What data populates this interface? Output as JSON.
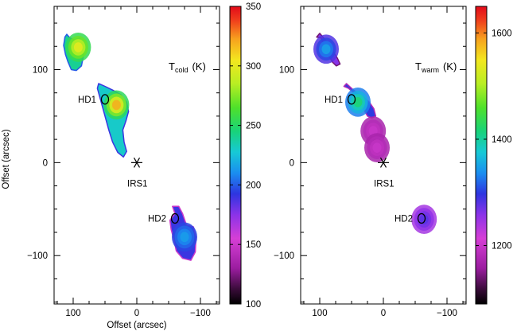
{
  "chart_data": [
    {
      "type": "heatmap",
      "panel_label": "T",
      "panel_subscript": "cold",
      "panel_unit": "(K)",
      "xlabel": "Offset (arcsec)",
      "ylabel": "Offset (arcsec)",
      "xlim": [
        130,
        -130
      ],
      "ylim": [
        -152,
        168
      ],
      "xticks": [
        100,
        0,
        -100
      ],
      "xtick_labels": [
        "100",
        "0",
        "−100"
      ],
      "yticks": [
        100,
        0,
        -100
      ],
      "ytick_labels": [
        "100",
        "0",
        "−100"
      ],
      "colorbar": {
        "range": [
          100,
          350
        ],
        "ticks": [
          100,
          150,
          200,
          250,
          300,
          350
        ],
        "tick_labels": [
          "100",
          "150",
          "200",
          "250",
          "300",
          "350"
        ]
      },
      "markers": [
        {
          "label": "IRS1",
          "x": 0,
          "y": 0,
          "symbol": "star"
        },
        {
          "label": "HD1",
          "x": 50,
          "y": 68,
          "symbol": "ellipse"
        },
        {
          "label": "HD2",
          "x": -60,
          "y": -60,
          "symbol": "ellipse"
        }
      ],
      "regions": [
        {
          "points": [
            [
              98,
              132
            ],
            [
              90,
              134
            ],
            [
              85,
              126
            ],
            [
              84,
              114
            ],
            [
              87,
              104
            ],
            [
              95,
              99
            ],
            [
              103,
              100
            ],
            [
              108,
              108
            ],
            [
              112,
              116
            ],
            [
              115,
              126
            ],
            [
              113,
              135
            ],
            [
              110,
              138
            ],
            [
              105,
              134
            ]
          ],
          "base_value": 240,
          "peak": [
            92,
            124
          ],
          "peak_value": 300
        },
        {
          "points": [
            [
              60,
              85
            ],
            [
              50,
              82
            ],
            [
              38,
              78
            ],
            [
              25,
              73
            ],
            [
              16,
              65
            ],
            [
              13,
              55
            ],
            [
              17,
              45
            ],
            [
              22,
              35
            ],
            [
              20,
              22
            ],
            [
              16,
              12
            ],
            [
              21,
              6
            ],
            [
              30,
              11
            ],
            [
              38,
              22
            ],
            [
              44,
              35
            ],
            [
              52,
              55
            ],
            [
              58,
              70
            ],
            [
              62,
              80
            ]
          ],
          "base_value": 230,
          "peak": [
            32,
            62
          ],
          "peak_value": 320
        },
        {
          "points": [
            [
              -60,
              -55
            ],
            [
              -56,
              -47
            ],
            [
              -66,
              -47
            ],
            [
              -72,
              -55
            ],
            [
              -78,
              -67
            ],
            [
              -89,
              -69
            ],
            [
              -93,
              -80
            ],
            [
              -92,
              -96
            ],
            [
              -85,
              -105
            ],
            [
              -72,
              -103
            ],
            [
              -62,
              -95
            ],
            [
              -58,
              -82
            ],
            [
              -54,
              -72
            ],
            [
              -52,
              -62
            ]
          ],
          "base_value": 190,
          "peak": [
            -75,
            -80
          ],
          "peak_value": 215
        }
      ]
    },
    {
      "type": "heatmap",
      "panel_label": "T",
      "panel_subscript": "warm",
      "panel_unit": "(K)",
      "xlabel": "",
      "ylabel": "",
      "xlim": [
        130,
        -130
      ],
      "ylim": [
        -152,
        168
      ],
      "xticks": [
        100,
        0,
        -100
      ],
      "xtick_labels": [
        "100",
        "0",
        "−100"
      ],
      "yticks": [
        100,
        0,
        -100
      ],
      "ytick_labels": [
        "100",
        "0",
        "−100"
      ],
      "colorbar": {
        "range": [
          1090,
          1650
        ],
        "ticks": [
          1200,
          1400,
          1600
        ],
        "tick_labels": [
          "1200",
          "1400",
          "1600"
        ]
      },
      "markers": [
        {
          "label": "IRS1",
          "x": 0,
          "y": 0,
          "symbol": "star"
        },
        {
          "label": "HD1",
          "x": 50,
          "y": 68,
          "symbol": "ellipse"
        },
        {
          "label": "HD2",
          "x": -60,
          "y": -60,
          "symbol": "ellipse"
        }
      ],
      "regions": [
        {
          "points": [
            [
              105,
              135
            ],
            [
              98,
              134
            ],
            [
              92,
              124
            ],
            [
              85,
              114
            ],
            [
              80,
              108
            ],
            [
              74,
              104
            ],
            [
              68,
              106
            ],
            [
              72,
              112
            ],
            [
              80,
              121
            ],
            [
              90,
              131
            ],
            [
              100,
              139
            ]
          ],
          "base_value": 1260,
          "peak": [
            90,
            122
          ],
          "peak_value": 1350
        },
        {
          "points": [
            [
              62,
              82
            ],
            [
              55,
              80
            ],
            [
              48,
              76
            ],
            [
              40,
              72
            ],
            [
              35,
              64
            ],
            [
              30,
              56
            ],
            [
              25,
              50
            ],
            [
              18,
              48
            ],
            [
              12,
              50
            ],
            [
              15,
              58
            ],
            [
              22,
              65
            ],
            [
              30,
              70
            ],
            [
              40,
              74
            ],
            [
              50,
              80
            ],
            [
              58,
              85
            ]
          ],
          "base_value": 1300,
          "peak": [
            40,
            65
          ],
          "peak_value": 1420
        },
        {
          "points": [
            [
              20,
              40
            ],
            [
              15,
              36
            ],
            [
              12,
              30
            ],
            [
              17,
              32
            ],
            [
              21,
              36
            ]
          ],
          "base_value": 1160,
          "peak": [
            16,
            34
          ],
          "peak_value": 1200
        },
        {
          "points": [
            [
              12,
              25
            ],
            [
              8,
              20
            ],
            [
              6,
              11
            ],
            [
              10,
              9
            ],
            [
              13,
              16
            ],
            [
              15,
              24
            ]
          ],
          "base_value": 1160,
          "peak": [
            10,
            16
          ],
          "peak_value": 1200
        },
        {
          "points": [
            [
              -57,
              -58
            ],
            [
              -60,
              -55
            ],
            [
              -66,
              -57
            ],
            [
              -70,
              -60
            ],
            [
              -69,
              -65
            ],
            [
              -63,
              -65
            ],
            [
              -58,
              -63
            ]
          ],
          "base_value": 1230,
          "peak": [
            -64,
            -61
          ],
          "peak_value": 1280
        }
      ]
    }
  ]
}
